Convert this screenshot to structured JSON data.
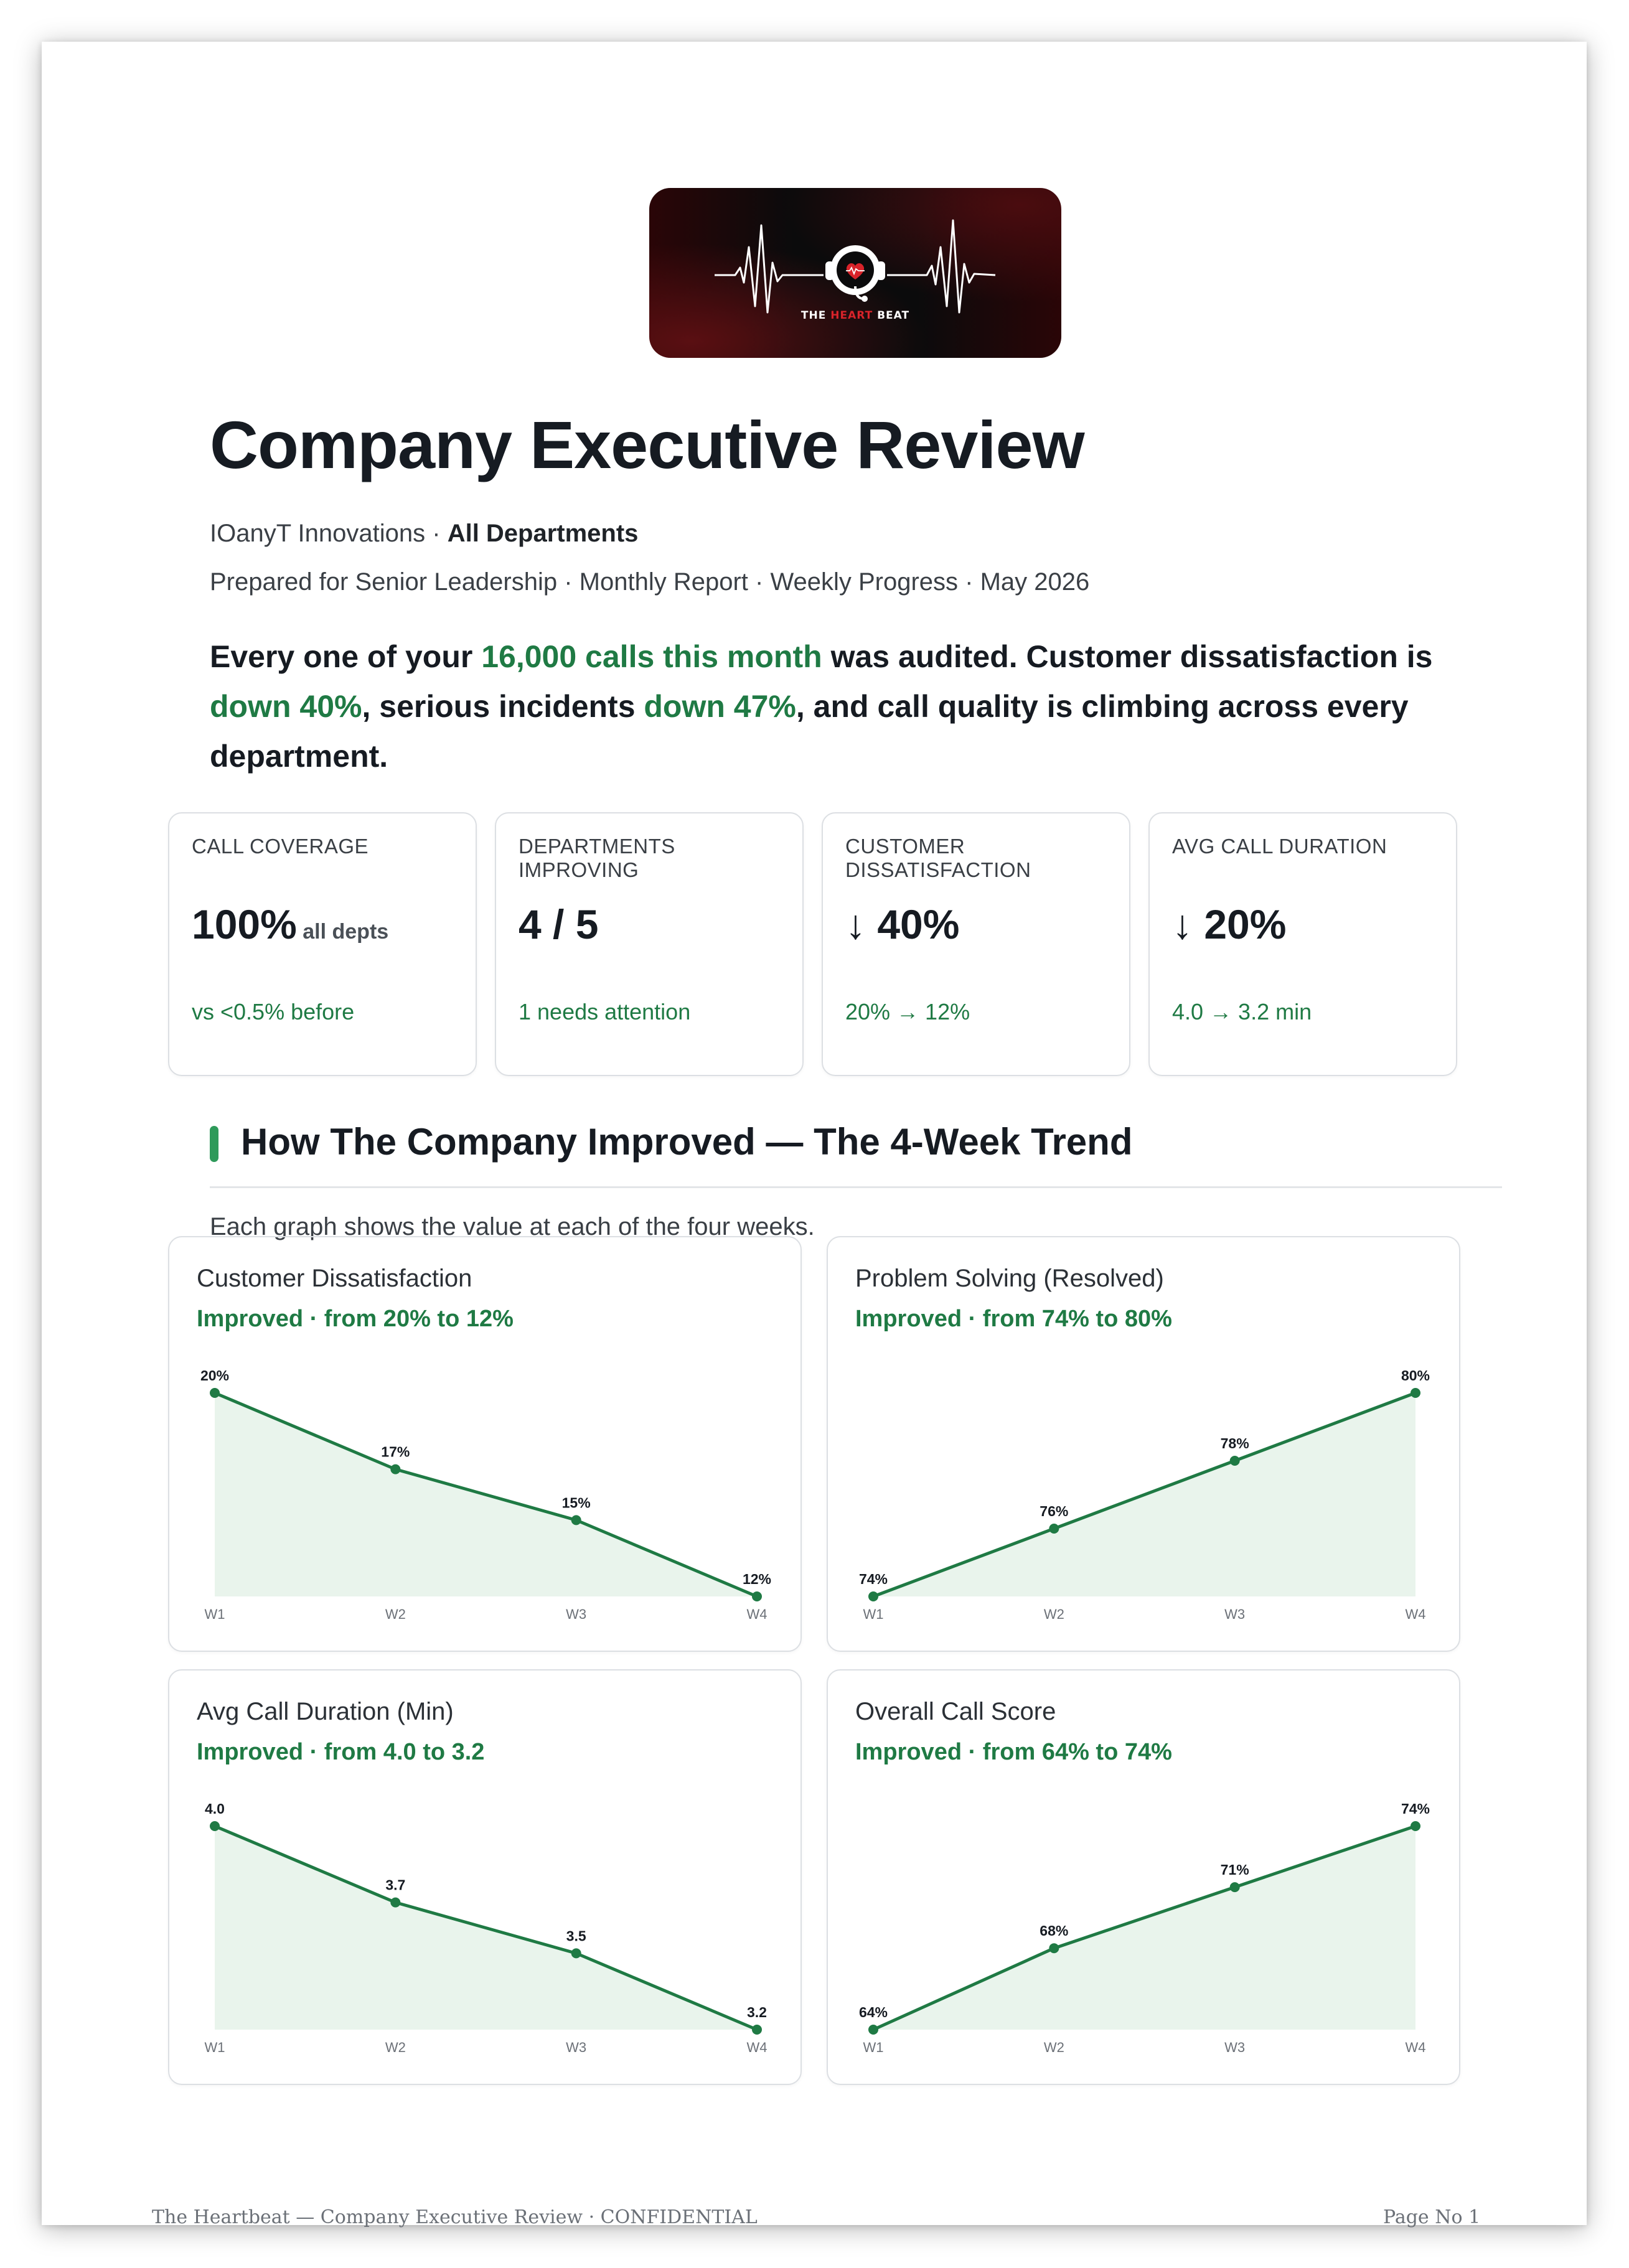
{
  "logo": {
    "brand_parts": [
      "THE ",
      "HEART",
      " BEAT"
    ],
    "colors": {
      "background": "#0b0b0c",
      "accent": "#d8232a",
      "line": "#ffffff"
    },
    "icons": [
      "heartbeat-line-icon",
      "headset-heart-icon"
    ]
  },
  "header": {
    "title": "Company Executive Review",
    "company": "IOanyT Innovations",
    "separator": " · ",
    "scope": "All Departments",
    "meta": "Prepared for Senior Leadership · Monthly Report · Weekly Progress · May 2026"
  },
  "lead": {
    "p1": "Every one of your ",
    "h1": "16,000 calls this month",
    "p2": " was audited. Customer dissatisfaction is ",
    "h2": "down 40%",
    "p3": ", serious incidents ",
    "h3": "down 47%",
    "p4": ", and call quality is climbing across every department."
  },
  "kpis": [
    {
      "label": "CALL COVERAGE",
      "value": "100%",
      "unit": " all depts",
      "foot": "vs <0.5% before"
    },
    {
      "label": "DEPARTMENTS IMPROVING",
      "value": "4 / 5",
      "unit": "",
      "foot": "1 needs attention"
    },
    {
      "label": "CUSTOMER DISSATISFACTION",
      "value": "↓ 40%",
      "unit": "",
      "foot": "20% → 12%"
    },
    {
      "label": "AVG CALL DURATION",
      "value": "↓ 20%",
      "unit": "",
      "foot": "4.0 → 3.2 min"
    }
  ],
  "section": {
    "title": "How The Company Improved — The 4-Week Trend",
    "description": "Each graph shows the value at each of the four weeks."
  },
  "colors": {
    "accent": "#1f7a44",
    "area_fill": "#e9f4ec",
    "section_bar": "#2e9a5a"
  },
  "chart_data": [
    {
      "type": "area",
      "title": "Customer Dissatisfaction",
      "subtitle": "Improved · from 20% to 12%",
      "categories": [
        "W1",
        "W2",
        "W3",
        "W4"
      ],
      "values": [
        20,
        17,
        15,
        12
      ],
      "labels": [
        "20%",
        "17%",
        "15%",
        "12%"
      ],
      "ylim": [
        12,
        20
      ],
      "grid": false
    },
    {
      "type": "area",
      "title": "Problem Solving (Resolved)",
      "subtitle": "Improved · from 74% to 80%",
      "categories": [
        "W1",
        "W2",
        "W3",
        "W4"
      ],
      "values": [
        74,
        76,
        78,
        80
      ],
      "labels": [
        "74%",
        "76%",
        "78%",
        "80%"
      ],
      "ylim": [
        74,
        80
      ],
      "grid": false
    },
    {
      "type": "area",
      "title": "Avg Call Duration (Min)",
      "subtitle": "Improved · from 4.0 to 3.2",
      "categories": [
        "W1",
        "W2",
        "W3",
        "W4"
      ],
      "values": [
        4.0,
        3.7,
        3.5,
        3.2
      ],
      "labels": [
        "4.0",
        "3.7",
        "3.5",
        "3.2"
      ],
      "ylim": [
        3.2,
        4.0
      ],
      "grid": false
    },
    {
      "type": "area",
      "title": "Overall Call Score",
      "subtitle": "Improved · from 64% to 74%",
      "categories": [
        "W1",
        "W2",
        "W3",
        "W4"
      ],
      "values": [
        64,
        68,
        71,
        74
      ],
      "labels": [
        "64%",
        "68%",
        "71%",
        "74%"
      ],
      "ylim": [
        64,
        74
      ],
      "grid": false
    }
  ],
  "footer": {
    "left": "The Heartbeat — Company Executive Review · CONFIDENTIAL",
    "right": "Page No 1"
  }
}
